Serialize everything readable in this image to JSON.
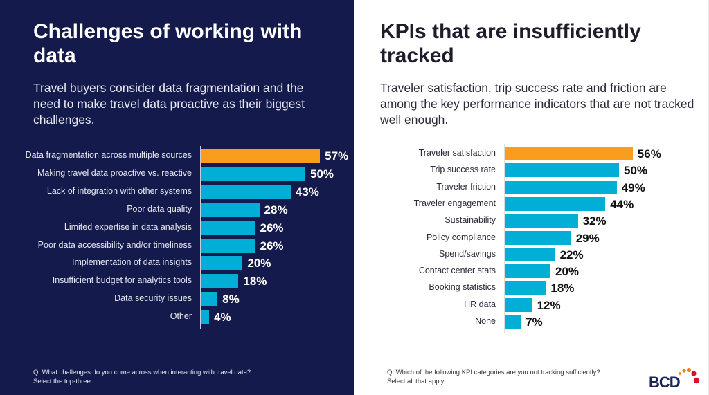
{
  "colors": {
    "highlight": "#f99d1c",
    "bar": "#00aed6",
    "left_background": "#141a4b",
    "logo_text": "#1a2456",
    "logo_dot_orange": "#f47b20",
    "logo_dot_red": "#d7141f"
  },
  "left": {
    "title": "Challenges of working with data",
    "subtitle": "Travel buyers consider data fragmentation and the need to make travel data proactive as their biggest challenges.",
    "footnote_line1": "Q: What challenges do you come across when interacting with travel data?",
    "footnote_line2": "Select the top-three."
  },
  "right": {
    "title": "KPIs that are insufficiently tracked",
    "subtitle": "Traveler satisfaction, trip success rate and friction are among the key performance indicators that are not tracked well enough.",
    "footnote_line1": "Q: Which of the following KPI categories are you not tracking sufficiently?",
    "footnote_line2": "Select all that apply."
  },
  "logo": {
    "text": "BCD"
  },
  "chart_data": [
    {
      "type": "bar",
      "orientation": "horizontal",
      "unit": "%",
      "xlim": [
        0,
        100
      ],
      "grid": false,
      "categories": [
        "Data fragmentation across multiple sources",
        "Making travel data proactive vs. reactive",
        "Lack of integration with other systems",
        "Poor data quality",
        "Limited expertise in data analysis",
        "Poor data accessibility and/or timeliness",
        "Implementation of data insights",
        "Insufficient budget for analytics tools",
        "Data security issues",
        "Other"
      ],
      "values": [
        57,
        50,
        43,
        28,
        26,
        26,
        20,
        18,
        8,
        4
      ],
      "highlight_index": 0
    },
    {
      "type": "bar",
      "orientation": "horizontal",
      "unit": "%",
      "xlim": [
        0,
        100
      ],
      "grid": false,
      "categories": [
        "Traveler satisfaction",
        "Trip success rate",
        "Traveler friction",
        "Traveler engagement",
        "Sustainability",
        "Policy compliance",
        "Spend/savings",
        "Contact center stats",
        "Booking statistics",
        "HR data",
        "None"
      ],
      "values": [
        56,
        50,
        49,
        44,
        32,
        29,
        22,
        20,
        18,
        12,
        7
      ],
      "highlight_index": 0
    }
  ]
}
